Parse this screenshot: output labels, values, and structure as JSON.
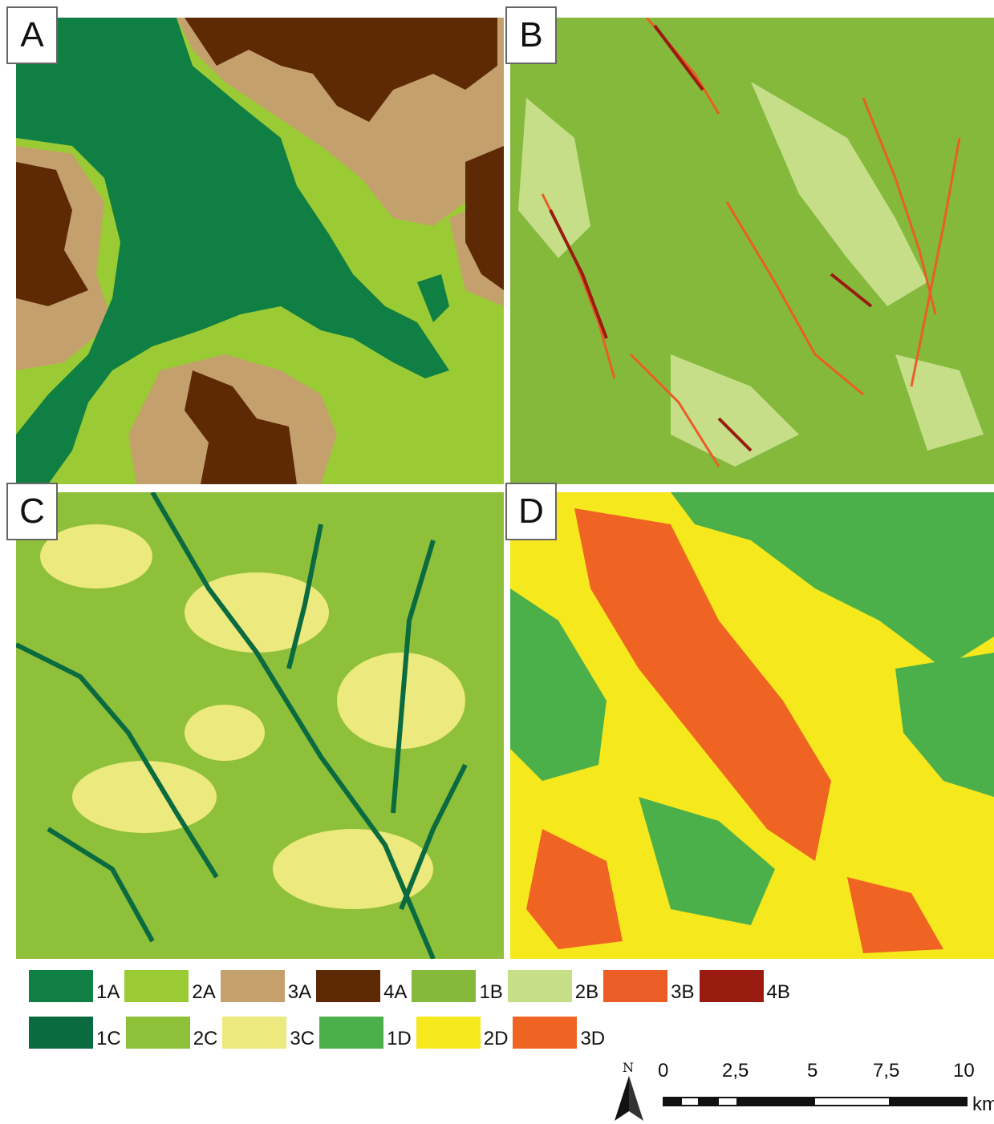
{
  "panels": {
    "a": {
      "label": "A"
    },
    "b": {
      "label": "B"
    },
    "c": {
      "label": "C"
    },
    "d": {
      "label": "D"
    }
  },
  "legend": {
    "row1": [
      {
        "code": "1A",
        "color": "#0f7f43"
      },
      {
        "code": "2A",
        "color": "#9acb35"
      },
      {
        "code": "3A",
        "color": "#c4a06c"
      },
      {
        "code": "4A",
        "color": "#5d2a05"
      },
      {
        "code": "1B",
        "color": "#84b93c"
      },
      {
        "code": "2B",
        "color": "#c5de87"
      },
      {
        "code": "3B",
        "color": "#ea5d27"
      },
      {
        "code": "4B",
        "color": "#9a1b10"
      }
    ],
    "row2": [
      {
        "code": "1C",
        "color": "#0a6a40"
      },
      {
        "code": "2C",
        "color": "#8fc03a"
      },
      {
        "code": "3C",
        "color": "#ece97e"
      },
      {
        "code": "1D",
        "color": "#4cb04a"
      },
      {
        "code": "2D",
        "color": "#f5e81c"
      },
      {
        "code": "3D",
        "color": "#ef6422"
      }
    ]
  },
  "north_arrow": {
    "label": "N"
  },
  "scale_bar": {
    "ticks": [
      "0",
      "2,5",
      "5",
      "7,5",
      "10"
    ],
    "unit": "km"
  }
}
